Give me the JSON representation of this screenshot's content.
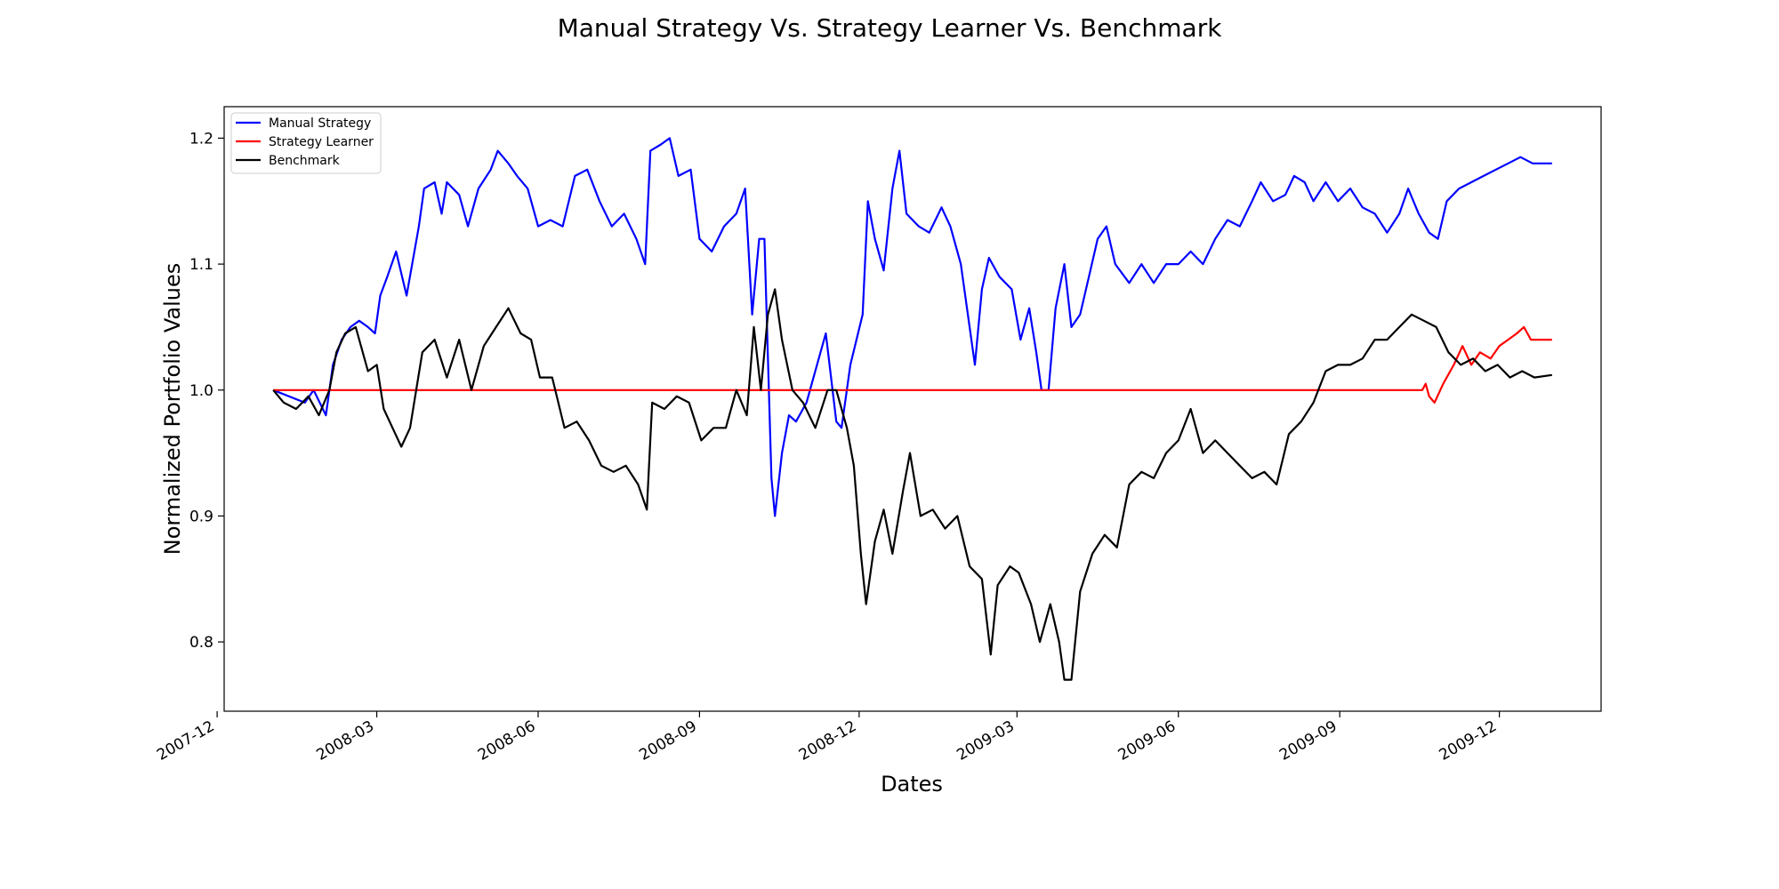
{
  "chart_data": {
    "type": "line",
    "title": "Manual Strategy Vs. Strategy Learner Vs. Benchmark",
    "xlabel": "Dates",
    "ylabel": "Normalized Portfolio Values",
    "x_range": [
      "2007-12-05",
      "2010-01-28"
    ],
    "ylim": [
      0.745,
      1.225
    ],
    "x_ticks": [
      "2007-12",
      "2008-03",
      "2008-06",
      "2008-09",
      "2008-12",
      "2009-03",
      "2009-06",
      "2009-09",
      "2009-12"
    ],
    "y_ticks": [
      0.8,
      0.9,
      1.0,
      1.1,
      1.2
    ],
    "grid": false,
    "legend_position": "top-left",
    "colors": {
      "Manual Strategy": "#0000ff",
      "Strategy Learner": "#ff0000",
      "Benchmark": "#000000"
    },
    "series": [
      {
        "name": "Manual Strategy",
        "points": [
          [
            "2008-01-02",
            1.0
          ],
          [
            "2008-01-20",
            0.99
          ],
          [
            "2008-01-25",
            1.0
          ],
          [
            "2008-02-01",
            0.98
          ],
          [
            "2008-02-05",
            1.02
          ],
          [
            "2008-02-10",
            1.04
          ],
          [
            "2008-02-15",
            1.05
          ],
          [
            "2008-02-20",
            1.055
          ],
          [
            "2008-02-25",
            1.05
          ],
          [
            "2008-02-29",
            1.045
          ],
          [
            "2008-03-03",
            1.075
          ],
          [
            "2008-03-07",
            1.09
          ],
          [
            "2008-03-12",
            1.11
          ],
          [
            "2008-03-18",
            1.075
          ],
          [
            "2008-03-25",
            1.13
          ],
          [
            "2008-03-28",
            1.16
          ],
          [
            "2008-04-03",
            1.165
          ],
          [
            "2008-04-07",
            1.14
          ],
          [
            "2008-04-10",
            1.165
          ],
          [
            "2008-04-17",
            1.155
          ],
          [
            "2008-04-22",
            1.13
          ],
          [
            "2008-04-28",
            1.16
          ],
          [
            "2008-05-05",
            1.175
          ],
          [
            "2008-05-09",
            1.19
          ],
          [
            "2008-05-15",
            1.18
          ],
          [
            "2008-05-20",
            1.17
          ],
          [
            "2008-05-26",
            1.16
          ],
          [
            "2008-06-01",
            1.13
          ],
          [
            "2008-06-08",
            1.135
          ],
          [
            "2008-06-15",
            1.13
          ],
          [
            "2008-06-22",
            1.17
          ],
          [
            "2008-06-29",
            1.175
          ],
          [
            "2008-07-06",
            1.15
          ],
          [
            "2008-07-13",
            1.13
          ],
          [
            "2008-07-20",
            1.14
          ],
          [
            "2008-07-27",
            1.12
          ],
          [
            "2008-08-01",
            1.1
          ],
          [
            "2008-08-04",
            1.19
          ],
          [
            "2008-08-10",
            1.195
          ],
          [
            "2008-08-15",
            1.2
          ],
          [
            "2008-08-20",
            1.17
          ],
          [
            "2008-08-27",
            1.175
          ],
          [
            "2008-09-01",
            1.12
          ],
          [
            "2008-09-08",
            1.11
          ],
          [
            "2008-09-15",
            1.13
          ],
          [
            "2008-09-22",
            1.14
          ],
          [
            "2008-09-27",
            1.16
          ],
          [
            "2008-10-01",
            1.06
          ],
          [
            "2008-10-05",
            1.12
          ],
          [
            "2008-10-08",
            1.12
          ],
          [
            "2008-10-12",
            0.93
          ],
          [
            "2008-10-14",
            0.9
          ],
          [
            "2008-10-18",
            0.95
          ],
          [
            "2008-10-22",
            0.98
          ],
          [
            "2008-10-26",
            0.975
          ],
          [
            "2008-11-01",
            0.99
          ],
          [
            "2008-11-07",
            1.02
          ],
          [
            "2008-11-12",
            1.045
          ],
          [
            "2008-11-18",
            0.975
          ],
          [
            "2008-11-21",
            0.97
          ],
          [
            "2008-11-26",
            1.02
          ],
          [
            "2008-12-03",
            1.06
          ],
          [
            "2008-12-06",
            1.15
          ],
          [
            "2008-12-10",
            1.12
          ],
          [
            "2008-12-15",
            1.095
          ],
          [
            "2008-12-20",
            1.16
          ],
          [
            "2008-12-24",
            1.19
          ],
          [
            "2008-12-28",
            1.14
          ],
          [
            "2009-01-04",
            1.13
          ],
          [
            "2009-01-10",
            1.125
          ],
          [
            "2009-01-17",
            1.145
          ],
          [
            "2009-01-22",
            1.13
          ],
          [
            "2009-01-28",
            1.1
          ],
          [
            "2009-02-01",
            1.06
          ],
          [
            "2009-02-05",
            1.02
          ],
          [
            "2009-02-09",
            1.08
          ],
          [
            "2009-02-13",
            1.105
          ],
          [
            "2009-02-19",
            1.09
          ],
          [
            "2009-02-26",
            1.08
          ],
          [
            "2009-03-03",
            1.04
          ],
          [
            "2009-03-08",
            1.065
          ],
          [
            "2009-03-12",
            1.03
          ],
          [
            "2009-03-15",
            1.0
          ],
          [
            "2009-03-19",
            1.0
          ],
          [
            "2009-03-23",
            1.065
          ],
          [
            "2009-03-28",
            1.1
          ],
          [
            "2009-04-01",
            1.05
          ],
          [
            "2009-04-06",
            1.06
          ],
          [
            "2009-04-11",
            1.09
          ],
          [
            "2009-04-16",
            1.12
          ],
          [
            "2009-04-21",
            1.13
          ],
          [
            "2009-04-26",
            1.1
          ],
          [
            "2009-05-04",
            1.085
          ],
          [
            "2009-05-11",
            1.1
          ],
          [
            "2009-05-18",
            1.085
          ],
          [
            "2009-05-25",
            1.1
          ],
          [
            "2009-06-01",
            1.1
          ],
          [
            "2009-06-08",
            1.11
          ],
          [
            "2009-06-15",
            1.1
          ],
          [
            "2009-06-22",
            1.12
          ],
          [
            "2009-06-29",
            1.135
          ],
          [
            "2009-07-06",
            1.13
          ],
          [
            "2009-07-13",
            1.15
          ],
          [
            "2009-07-18",
            1.165
          ],
          [
            "2009-07-25",
            1.15
          ],
          [
            "2009-08-01",
            1.155
          ],
          [
            "2009-08-06",
            1.17
          ],
          [
            "2009-08-12",
            1.165
          ],
          [
            "2009-08-17",
            1.15
          ],
          [
            "2009-08-24",
            1.165
          ],
          [
            "2009-08-31",
            1.15
          ],
          [
            "2009-09-07",
            1.16
          ],
          [
            "2009-09-14",
            1.145
          ],
          [
            "2009-09-21",
            1.14
          ],
          [
            "2009-09-28",
            1.125
          ],
          [
            "2009-10-05",
            1.14
          ],
          [
            "2009-10-10",
            1.16
          ],
          [
            "2009-10-16",
            1.14
          ],
          [
            "2009-10-22",
            1.125
          ],
          [
            "2009-10-27",
            1.12
          ],
          [
            "2009-11-01",
            1.15
          ],
          [
            "2009-11-08",
            1.16
          ],
          [
            "2009-11-15",
            1.165
          ],
          [
            "2009-11-22",
            1.17
          ],
          [
            "2009-11-29",
            1.175
          ],
          [
            "2009-12-06",
            1.18
          ],
          [
            "2009-12-13",
            1.185
          ],
          [
            "2009-12-20",
            1.18
          ],
          [
            "2009-12-27",
            1.18
          ],
          [
            "2009-12-31",
            1.18
          ]
        ]
      },
      {
        "name": "Strategy Learner",
        "points": [
          [
            "2008-01-02",
            1.0
          ],
          [
            "2009-10-18",
            1.0
          ],
          [
            "2009-10-20",
            1.005
          ],
          [
            "2009-10-22",
            0.995
          ],
          [
            "2009-10-25",
            0.99
          ],
          [
            "2009-10-30",
            1.005
          ],
          [
            "2009-11-05",
            1.02
          ],
          [
            "2009-11-10",
            1.035
          ],
          [
            "2009-11-15",
            1.02
          ],
          [
            "2009-11-20",
            1.03
          ],
          [
            "2009-11-26",
            1.025
          ],
          [
            "2009-12-01",
            1.035
          ],
          [
            "2009-12-06",
            1.04
          ],
          [
            "2009-12-11",
            1.045
          ],
          [
            "2009-12-15",
            1.05
          ],
          [
            "2009-12-19",
            1.04
          ],
          [
            "2009-12-24",
            1.04
          ],
          [
            "2009-12-31",
            1.04
          ]
        ]
      },
      {
        "name": "Benchmark",
        "points": [
          [
            "2008-01-02",
            1.0
          ],
          [
            "2008-01-08",
            0.99
          ],
          [
            "2008-01-15",
            0.985
          ],
          [
            "2008-01-22",
            0.995
          ],
          [
            "2008-01-28",
            0.98
          ],
          [
            "2008-02-03",
            1.0
          ],
          [
            "2008-02-07",
            1.03
          ],
          [
            "2008-02-12",
            1.045
          ],
          [
            "2008-02-18",
            1.05
          ],
          [
            "2008-02-25",
            1.015
          ],
          [
            "2008-03-01",
            1.02
          ],
          [
            "2008-03-05",
            0.985
          ],
          [
            "2008-03-10",
            0.97
          ],
          [
            "2008-03-15",
            0.955
          ],
          [
            "2008-03-20",
            0.97
          ],
          [
            "2008-03-27",
            1.03
          ],
          [
            "2008-04-03",
            1.04
          ],
          [
            "2008-04-10",
            1.01
          ],
          [
            "2008-04-17",
            1.04
          ],
          [
            "2008-04-24",
            1.0
          ],
          [
            "2008-05-01",
            1.035
          ],
          [
            "2008-05-08",
            1.05
          ],
          [
            "2008-05-15",
            1.065
          ],
          [
            "2008-05-22",
            1.045
          ],
          [
            "2008-05-28",
            1.04
          ],
          [
            "2008-06-02",
            1.01
          ],
          [
            "2008-06-09",
            1.01
          ],
          [
            "2008-06-16",
            0.97
          ],
          [
            "2008-06-23",
            0.975
          ],
          [
            "2008-06-30",
            0.96
          ],
          [
            "2008-07-07",
            0.94
          ],
          [
            "2008-07-14",
            0.935
          ],
          [
            "2008-07-21",
            0.94
          ],
          [
            "2008-07-28",
            0.925
          ],
          [
            "2008-08-02",
            0.905
          ],
          [
            "2008-08-05",
            0.99
          ],
          [
            "2008-08-12",
            0.985
          ],
          [
            "2008-08-19",
            0.995
          ],
          [
            "2008-08-26",
            0.99
          ],
          [
            "2008-09-02",
            0.96
          ],
          [
            "2008-09-09",
            0.97
          ],
          [
            "2008-09-16",
            0.97
          ],
          [
            "2008-09-22",
            1.0
          ],
          [
            "2008-09-28",
            0.98
          ],
          [
            "2008-10-02",
            1.05
          ],
          [
            "2008-10-06",
            1.0
          ],
          [
            "2008-10-10",
            1.06
          ],
          [
            "2008-10-14",
            1.08
          ],
          [
            "2008-10-18",
            1.04
          ],
          [
            "2008-10-24",
            1.0
          ],
          [
            "2008-10-30",
            0.99
          ],
          [
            "2008-11-06",
            0.97
          ],
          [
            "2008-11-13",
            1.0
          ],
          [
            "2008-11-18",
            1.0
          ],
          [
            "2008-11-24",
            0.97
          ],
          [
            "2008-11-28",
            0.94
          ],
          [
            "2008-12-02",
            0.87
          ],
          [
            "2008-12-05",
            0.83
          ],
          [
            "2008-12-10",
            0.88
          ],
          [
            "2008-12-15",
            0.905
          ],
          [
            "2008-12-20",
            0.87
          ],
          [
            "2008-12-26",
            0.92
          ],
          [
            "2008-12-30",
            0.95
          ],
          [
            "2009-01-05",
            0.9
          ],
          [
            "2009-01-12",
            0.905
          ],
          [
            "2009-01-19",
            0.89
          ],
          [
            "2009-01-26",
            0.9
          ],
          [
            "2009-02-02",
            0.86
          ],
          [
            "2009-02-09",
            0.85
          ],
          [
            "2009-02-14",
            0.79
          ],
          [
            "2009-02-18",
            0.845
          ],
          [
            "2009-02-25",
            0.86
          ],
          [
            "2009-03-02",
            0.855
          ],
          [
            "2009-03-09",
            0.83
          ],
          [
            "2009-03-14",
            0.8
          ],
          [
            "2009-03-20",
            0.83
          ],
          [
            "2009-03-25",
            0.8
          ],
          [
            "2009-03-28",
            0.77
          ],
          [
            "2009-04-01",
            0.77
          ],
          [
            "2009-04-06",
            0.84
          ],
          [
            "2009-04-13",
            0.87
          ],
          [
            "2009-04-20",
            0.885
          ],
          [
            "2009-04-27",
            0.875
          ],
          [
            "2009-05-04",
            0.925
          ],
          [
            "2009-05-11",
            0.935
          ],
          [
            "2009-05-18",
            0.93
          ],
          [
            "2009-05-25",
            0.95
          ],
          [
            "2009-06-01",
            0.96
          ],
          [
            "2009-06-08",
            0.985
          ],
          [
            "2009-06-15",
            0.95
          ],
          [
            "2009-06-22",
            0.96
          ],
          [
            "2009-06-29",
            0.95
          ],
          [
            "2009-07-06",
            0.94
          ],
          [
            "2009-07-13",
            0.93
          ],
          [
            "2009-07-20",
            0.935
          ],
          [
            "2009-07-27",
            0.925
          ],
          [
            "2009-08-03",
            0.965
          ],
          [
            "2009-08-10",
            0.975
          ],
          [
            "2009-08-17",
            0.99
          ],
          [
            "2009-08-24",
            1.015
          ],
          [
            "2009-08-31",
            1.02
          ],
          [
            "2009-09-07",
            1.02
          ],
          [
            "2009-09-14",
            1.025
          ],
          [
            "2009-09-21",
            1.04
          ],
          [
            "2009-09-28",
            1.04
          ],
          [
            "2009-10-05",
            1.05
          ],
          [
            "2009-10-12",
            1.06
          ],
          [
            "2009-10-19",
            1.055
          ],
          [
            "2009-10-26",
            1.05
          ],
          [
            "2009-11-02",
            1.03
          ],
          [
            "2009-11-09",
            1.02
          ],
          [
            "2009-11-16",
            1.025
          ],
          [
            "2009-11-23",
            1.015
          ],
          [
            "2009-11-30",
            1.02
          ],
          [
            "2009-12-07",
            1.01
          ],
          [
            "2009-12-14",
            1.015
          ],
          [
            "2009-12-21",
            1.01
          ],
          [
            "2009-12-31",
            1.012
          ]
        ]
      }
    ]
  }
}
